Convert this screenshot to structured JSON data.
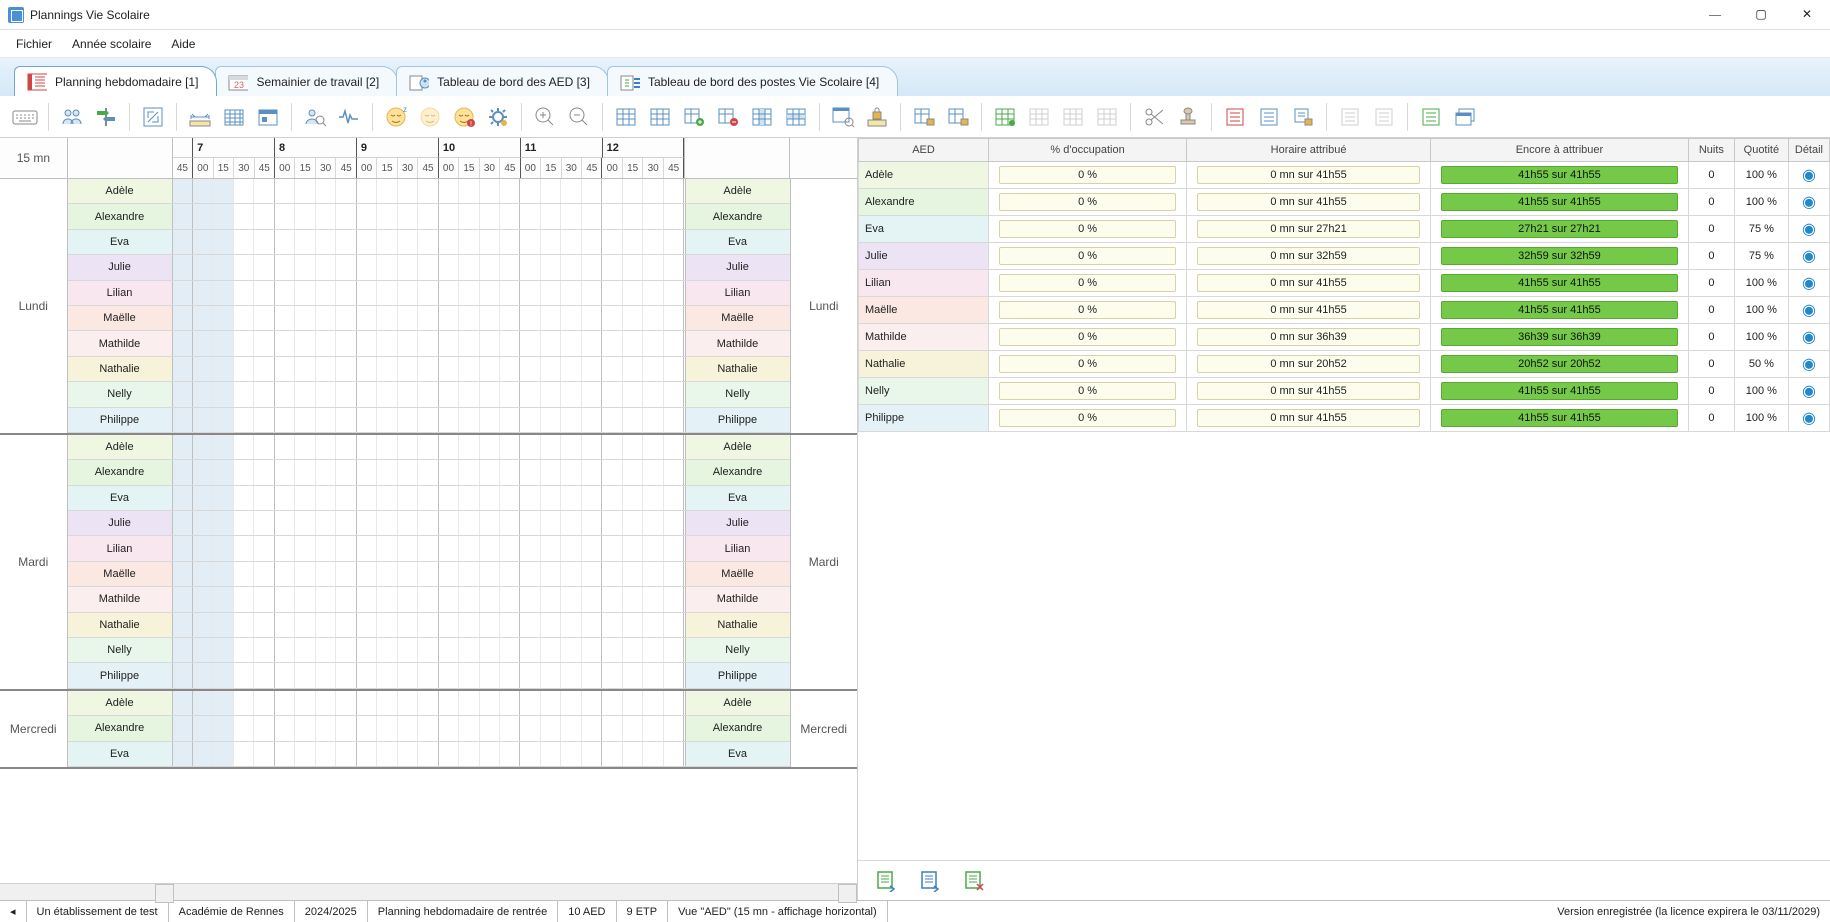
{
  "window": {
    "title": "Plannings Vie Scolaire",
    "minimize": "—",
    "maximize": "▢",
    "close": "✕"
  },
  "menu": {
    "file": "Fichier",
    "year": "Année scolaire",
    "help": "Aide"
  },
  "tabs": [
    {
      "label": "Planning hebdomadaire [1]",
      "active": true
    },
    {
      "label": "Semainier de travail [2]",
      "active": false
    },
    {
      "label": "Tableau de bord des AED [3]",
      "active": false
    },
    {
      "label": "Tableau de bord des postes Vie Scolaire [4]",
      "active": false
    }
  ],
  "timeline": {
    "corner_label": "15 mn",
    "first_minute": "45",
    "hours": [
      7,
      8,
      9,
      10,
      11,
      12
    ],
    "minutes": [
      "00",
      "15",
      "30",
      "45"
    ],
    "grid_early_cols": 1
  },
  "aed_colors": {
    "Adèle": "#eff7e3",
    "Alexandre": "#e6f5e0",
    "Eva": "#e4f4f4",
    "Julie": "#ece4f4",
    "Lilian": "#f9e7ef",
    "Maëlle": "#fbe8e3",
    "Mathilde": "#fbeeee",
    "Nathalie": "#f6f3da",
    "Nelly": "#e9f7eb",
    "Philippe": "#e4f1f7"
  },
  "days": [
    {
      "label": "Lundi",
      "aeds": [
        "Adèle",
        "Alexandre",
        "Eva",
        "Julie",
        "Lilian",
        "Maëlle",
        "Mathilde",
        "Nathalie",
        "Nelly",
        "Philippe"
      ]
    },
    {
      "label": "Mardi",
      "aeds": [
        "Adèle",
        "Alexandre",
        "Eva",
        "Julie",
        "Lilian",
        "Maëlle",
        "Mathilde",
        "Nathalie",
        "Nelly",
        "Philippe"
      ]
    },
    {
      "label": "Mercredi",
      "aeds": [
        "Adèle",
        "Alexandre",
        "Eva"
      ]
    }
  ],
  "right_table": {
    "headers": {
      "aed": "AED",
      "occ": "% d'occupation",
      "hor": "Horaire attribué",
      "enc": "Encore à attribuer",
      "nuits": "Nuits",
      "quot": "Quotité",
      "det": "Détail"
    },
    "rows": [
      {
        "name": "Adèle",
        "occ": "0 %",
        "hor": "0 mn sur 41h55",
        "enc": "41h55 sur 41h55",
        "nuits": "0",
        "quot": "100 %"
      },
      {
        "name": "Alexandre",
        "occ": "0 %",
        "hor": "0 mn sur 41h55",
        "enc": "41h55 sur 41h55",
        "nuits": "0",
        "quot": "100 %"
      },
      {
        "name": "Eva",
        "occ": "0 %",
        "hor": "0 mn sur 27h21",
        "enc": "27h21 sur 27h21",
        "nuits": "0",
        "quot": "75 %"
      },
      {
        "name": "Julie",
        "occ": "0 %",
        "hor": "0 mn sur 32h59",
        "enc": "32h59 sur 32h59",
        "nuits": "0",
        "quot": "75 %"
      },
      {
        "name": "Lilian",
        "occ": "0 %",
        "hor": "0 mn sur 41h55",
        "enc": "41h55 sur 41h55",
        "nuits": "0",
        "quot": "100 %"
      },
      {
        "name": "Maëlle",
        "occ": "0 %",
        "hor": "0 mn sur 41h55",
        "enc": "41h55 sur 41h55",
        "nuits": "0",
        "quot": "100 %"
      },
      {
        "name": "Mathilde",
        "occ": "0 %",
        "hor": "0 mn sur 36h39",
        "enc": "36h39 sur 36h39",
        "nuits": "0",
        "quot": "100 %"
      },
      {
        "name": "Nathalie",
        "occ": "0 %",
        "hor": "0 mn sur 20h52",
        "enc": "20h52 sur 20h52",
        "nuits": "0",
        "quot": "50 %"
      },
      {
        "name": "Nelly",
        "occ": "0 %",
        "hor": "0 mn sur 41h55",
        "enc": "41h55 sur 41h55",
        "nuits": "0",
        "quot": "100 %"
      },
      {
        "name": "Philippe",
        "occ": "0 %",
        "hor": "0 mn sur 41h55",
        "enc": "41h55 sur 41h55",
        "nuits": "0",
        "quot": "100 %"
      }
    ]
  },
  "status": {
    "arrow": "◂",
    "etab": "Un établissement de test",
    "acad": "Académie de Rennes",
    "year": "2024/2025",
    "plan": "Planning hebdomadaire de rentrée",
    "aed_count": "10 AED",
    "etp": "9 ETP",
    "view": "Vue \"AED\" (15 mn - affichage horizontal)",
    "license": "Version enregistrée (la licence expirera le 03/11/2029)"
  },
  "toolbar_icons": [
    "keyboard",
    "sep",
    "users",
    "signpost",
    "sep",
    "resize",
    "sep",
    "ruler-h",
    "calendar-grid",
    "calendar-day",
    "sep",
    "user-search",
    "pulse",
    "sep",
    "face-sleep",
    "face-sleep-dim",
    "face-sleep-warn",
    "gear-color",
    "sep",
    "zoom-in",
    "zoom-out",
    "sep",
    "grid1",
    "grid2",
    "grid-add",
    "grid-del",
    "grid-ins",
    "grid-rem",
    "sep",
    "window-search",
    "lock-ruler",
    "sep",
    "grid-lock1",
    "grid-lock2",
    "sep",
    "grid-new",
    "grid-disabled1",
    "grid-disabled2",
    "grid-disabled3",
    "sep",
    "scissors",
    "stamp",
    "sep",
    "list-red",
    "list-blue",
    "list-lock",
    "sep",
    "list-dim1",
    "list-dim2",
    "sep",
    "list-green",
    "windows"
  ]
}
